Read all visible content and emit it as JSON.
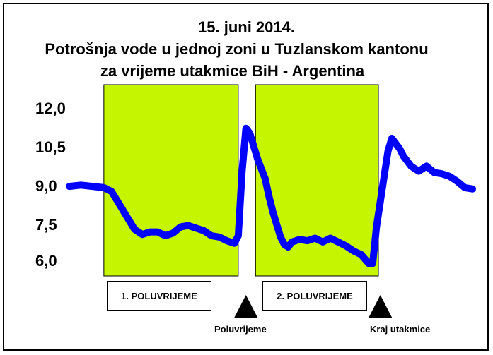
{
  "chart_data": {
    "type": "line",
    "title_lines": [
      "15. juni 2014.",
      "Potrošnja vode u jednoj zoni u Tuzlanskom kantonu",
      "za vrijeme utakmice BiH - Argentina"
    ],
    "xlabel": "",
    "ylabel": "",
    "ylim": [
      6.0,
      12.0
    ],
    "y_ticks": [
      "12,0",
      "10,5",
      "9,0",
      "7,5",
      "6,0"
    ],
    "series": [
      {
        "color": "#0000ff",
        "points": [
          [
            0,
            8.9
          ],
          [
            3,
            8.95
          ],
          [
            6,
            8.9
          ],
          [
            9,
            8.85
          ],
          [
            11,
            8.7
          ],
          [
            13,
            8.2
          ],
          [
            15,
            7.7
          ],
          [
            17,
            7.2
          ],
          [
            19,
            7.0
          ],
          [
            21,
            7.1
          ],
          [
            23,
            7.1
          ],
          [
            25,
            6.95
          ],
          [
            27,
            7.05
          ],
          [
            29,
            7.3
          ],
          [
            31,
            7.35
          ],
          [
            33,
            7.25
          ],
          [
            35,
            7.15
          ],
          [
            37,
            6.95
          ],
          [
            39,
            6.9
          ],
          [
            41,
            6.75
          ],
          [
            43,
            6.65
          ],
          [
            44,
            6.95
          ],
          [
            45,
            9.5
          ],
          [
            46,
            11.2
          ],
          [
            47,
            11.0
          ],
          [
            48,
            10.5
          ],
          [
            49,
            10.0
          ],
          [
            50,
            9.6
          ],
          [
            51,
            9.2
          ],
          [
            52,
            8.5
          ],
          [
            53,
            7.9
          ],
          [
            54,
            7.4
          ],
          [
            55,
            6.9
          ],
          [
            56,
            6.6
          ],
          [
            57,
            6.5
          ],
          [
            58,
            6.7
          ],
          [
            60,
            6.8
          ],
          [
            62,
            6.75
          ],
          [
            64,
            6.85
          ],
          [
            66,
            6.7
          ],
          [
            68,
            6.85
          ],
          [
            70,
            6.7
          ],
          [
            72,
            6.55
          ],
          [
            74,
            6.35
          ],
          [
            76,
            6.2
          ],
          [
            78,
            5.85
          ],
          [
            79,
            5.85
          ],
          [
            80,
            7.3
          ],
          [
            81,
            8.3
          ],
          [
            82,
            9.3
          ],
          [
            83,
            10.3
          ],
          [
            84,
            10.8
          ],
          [
            85,
            10.6
          ],
          [
            86,
            10.4
          ],
          [
            87,
            10.1
          ],
          [
            89,
            9.7
          ],
          [
            91,
            9.5
          ],
          [
            93,
            9.7
          ],
          [
            95,
            9.45
          ],
          [
            97,
            9.4
          ],
          [
            99,
            9.3
          ],
          [
            101,
            9.1
          ],
          [
            103,
            8.85
          ],
          [
            105,
            8.8
          ]
        ]
      }
    ],
    "shaded_periods": [
      {
        "label": "1. POLUVRIJEME",
        "x_start": 9,
        "x_end": 44
      },
      {
        "label": "2. POLUVRIJEME",
        "x_start": 48.5,
        "x_end": 80.5
      }
    ],
    "markers": [
      {
        "label": "Poluvrijeme",
        "x": 46
      },
      {
        "label": "Kraj utakmice",
        "x": 81
      }
    ],
    "x_range": [
      0,
      105
    ],
    "grid": false,
    "legend": "none",
    "shade_color": "#c6f500",
    "line_color": "#0000ff"
  }
}
